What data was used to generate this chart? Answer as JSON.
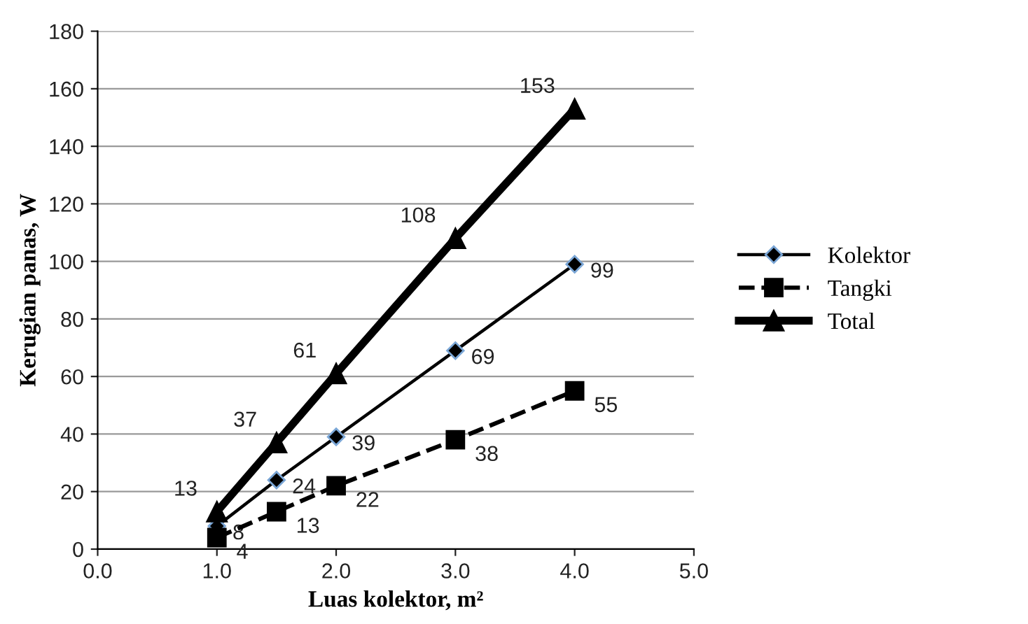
{
  "chart_data": {
    "type": "line",
    "xlabel": "Luas kolektor, m²",
    "ylabel": "Kerugian panas, W",
    "xlim": [
      0,
      5
    ],
    "xticks": [
      {
        "value": 0,
        "label": "0.0"
      },
      {
        "value": 1,
        "label": "1.0"
      },
      {
        "value": 2,
        "label": "2.0"
      },
      {
        "value": 3,
        "label": "3.0"
      },
      {
        "value": 4,
        "label": "4.0"
      },
      {
        "value": 5,
        "label": "5.0"
      }
    ],
    "ylim": [
      0,
      180
    ],
    "yticks": [
      0,
      20,
      40,
      60,
      80,
      100,
      120,
      140,
      160,
      180
    ],
    "grid": "y",
    "legend": "right",
    "data_labels": true,
    "x": [
      1,
      1.5,
      2,
      3,
      4
    ],
    "series": [
      {
        "name": "Kolektor",
        "color": "#000000",
        "marker": "diamond",
        "line_style": "solid",
        "values": [
          8,
          24,
          39,
          69,
          99
        ]
      },
      {
        "name": "Tangki",
        "color": "#000000",
        "marker": "square",
        "line_style": "dashed",
        "values": [
          4,
          13,
          22,
          38,
          55
        ]
      },
      {
        "name": "Total",
        "color": "#000000",
        "marker": "triangle",
        "line_style": "solid",
        "values": [
          13,
          37,
          61,
          108,
          153
        ]
      }
    ]
  }
}
